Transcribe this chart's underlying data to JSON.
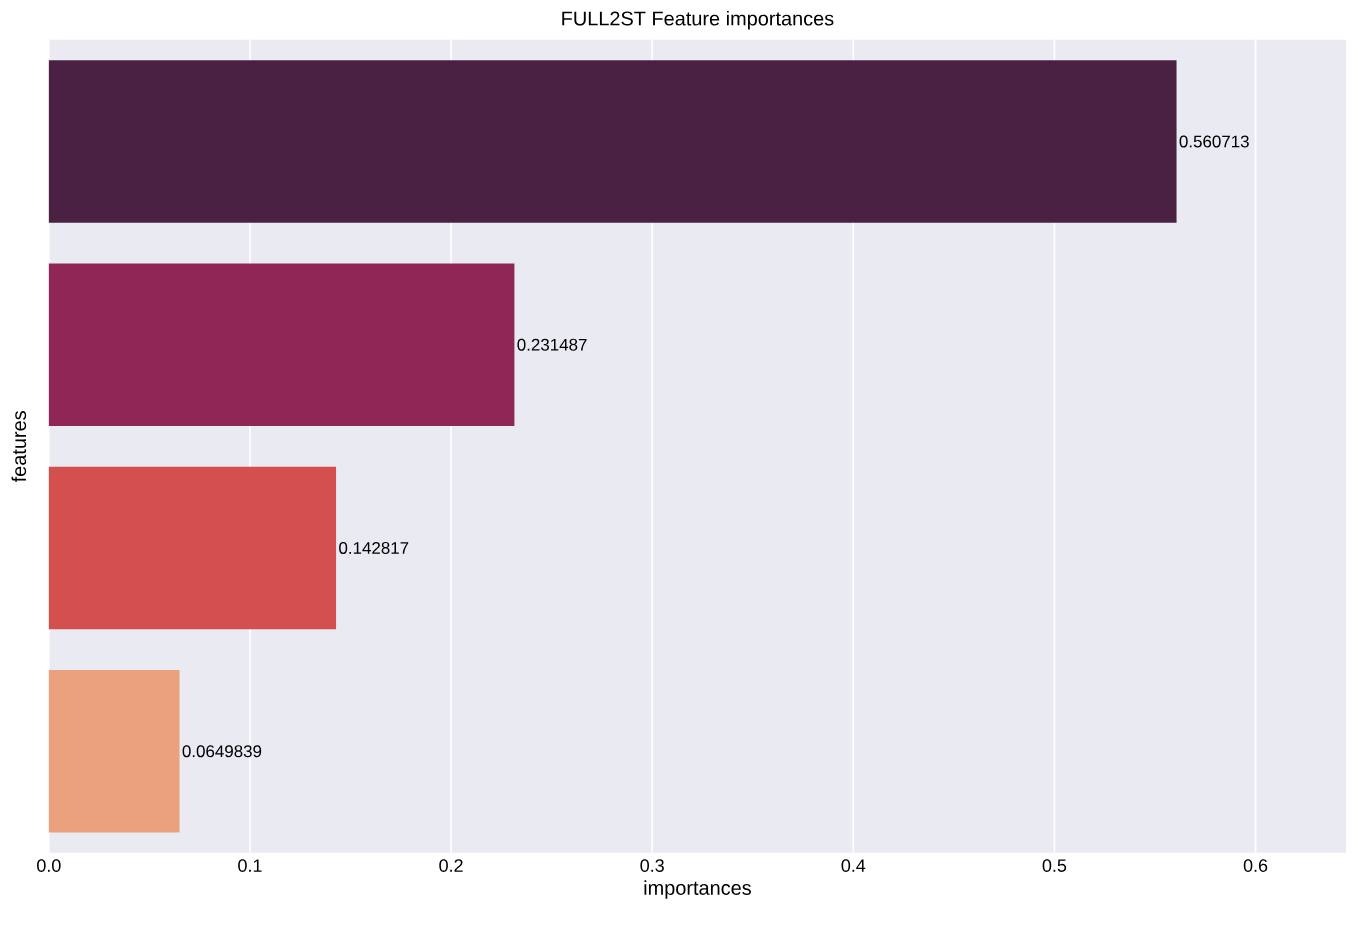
{
  "chart_data": {
    "type": "bar",
    "orientation": "horizontal",
    "title": "FULL2ST Feature importances",
    "xlabel": "importances",
    "ylabel": "features",
    "categories": [
      null,
      null,
      null,
      null
    ],
    "values": [
      0.560713,
      0.231487,
      0.142817,
      0.0649839
    ],
    "colors": [
      "#4a2142",
      "#8f2656",
      "#d4504f",
      "#eba07e"
    ],
    "xlim": [
      0,
      0.645
    ],
    "xticks": [
      {
        "value": 0,
        "label": "0.0"
      },
      {
        "value": 0.1,
        "label": "0.1"
      },
      {
        "value": 0.2,
        "label": "0.2"
      },
      {
        "value": 0.3,
        "label": "0.3"
      },
      {
        "value": 0.4,
        "label": "0.4"
      },
      {
        "value": 0.5,
        "label": "0.5"
      },
      {
        "value": 0.6,
        "label": "0.6"
      }
    ],
    "grid": "x",
    "tick_labels": "x",
    "data_labels": true
  }
}
